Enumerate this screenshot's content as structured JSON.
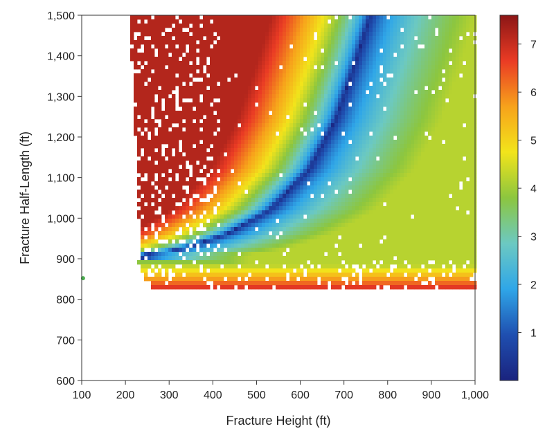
{
  "chart_data": {
    "type": "heatmap",
    "title": "",
    "xlabel": "Fracture Height (ft)",
    "ylabel": "Fracture Half-Length (ft)",
    "xlim": [
      100,
      1000
    ],
    "ylim": [
      600,
      1500
    ],
    "x_ticks": [
      100,
      200,
      300,
      400,
      500,
      600,
      700,
      800,
      900,
      1000
    ],
    "x_tick_labels": [
      "100",
      "200",
      "300",
      "400",
      "500",
      "600",
      "700",
      "800",
      "900",
      "1,000"
    ],
    "y_ticks": [
      600,
      700,
      800,
      900,
      1000,
      1100,
      1200,
      1300,
      1400,
      1500
    ],
    "y_tick_labels": [
      "600",
      "700",
      "800",
      "900",
      "1,000",
      "1,100",
      "1,200",
      "1,300",
      "1,400",
      "1,500"
    ],
    "colorbar": {
      "min": 0,
      "max": 7.6,
      "ticks": [
        1,
        2,
        3,
        4,
        5,
        6,
        7
      ],
      "tick_labels": [
        "1",
        "2",
        "3",
        "4",
        "5",
        "6",
        "7"
      ],
      "colormap": [
        "#1a237e",
        "#1f4fb0",
        "#2fa6e8",
        "#6cc9c2",
        "#8cc63f",
        "#f2e41b",
        "#f7a21b",
        "#ea3b24",
        "#8b1616"
      ]
    },
    "grid": false,
    "value_range": [
      0,
      7.6
    ],
    "data_region": {
      "lower_bound_half_length": 820,
      "left_edge_height_at_top": 210,
      "left_edge_height_at_bottom": 235
    },
    "minimum_valley": {
      "description": "trough of lowest values",
      "points": [
        [
          240,
          910
        ],
        [
          330,
          925
        ],
        [
          430,
          960
        ],
        [
          530,
          1020
        ],
        [
          620,
          1120
        ],
        [
          680,
          1240
        ],
        [
          725,
          1380
        ],
        [
          760,
          1500
        ]
      ]
    },
    "outlier_point": {
      "x": 103,
      "y": 852,
      "color": "#4caf50"
    }
  }
}
